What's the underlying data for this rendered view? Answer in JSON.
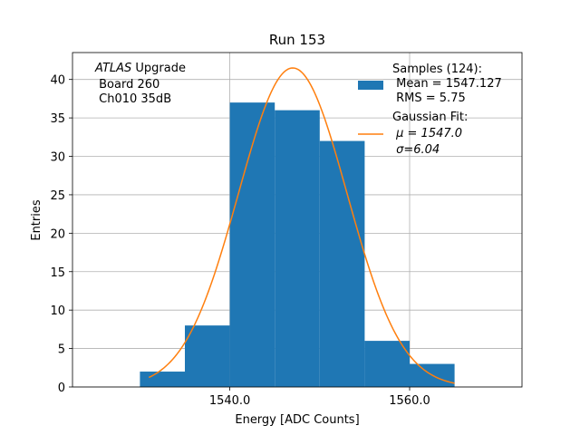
{
  "chart_data": {
    "type": "bar",
    "title": "Run 153",
    "xlabel": "Energy [ADC Counts]",
    "ylabel": "Entries",
    "xlim": [
      1522.5,
      1572.5
    ],
    "ylim": [
      0,
      43.5
    ],
    "grid": true,
    "x_ticks": [
      1540.0,
      1560.0
    ],
    "x_tick_labels": [
      "1540.0",
      "1560.0"
    ],
    "y_ticks": [
      0,
      5,
      10,
      15,
      20,
      25,
      30,
      35,
      40
    ],
    "y_tick_labels": [
      "0",
      "5",
      "10",
      "15",
      "20",
      "25",
      "30",
      "35",
      "40"
    ],
    "histogram": {
      "bin_edges": [
        1530,
        1535,
        1540,
        1545,
        1550,
        1555,
        1560,
        1565
      ],
      "counts": [
        2,
        8,
        37,
        36,
        32,
        6,
        3
      ],
      "color": "#1f77b4"
    },
    "fit": {
      "type": "gaussian",
      "amplitude": 41.5,
      "mu": 1547.0,
      "sigma": 6.04,
      "x_range": [
        1531,
        1565
      ],
      "color": "#ff7f0e"
    },
    "legend_position": "top-right",
    "legend": [
      {
        "marker": "patch",
        "lines": [
          "Samples (124):",
          " Mean = 1547.127",
          " RMS = 5.75"
        ]
      },
      {
        "marker": "line",
        "lines": [
          "Gaussian Fit:",
          " μ = 1547.0",
          " σ=6.04"
        ]
      }
    ],
    "annotation": {
      "italic": "ATLAS",
      "rest": " Upgrade",
      "lines": [
        " Board 260",
        " Ch010 35dB"
      ]
    }
  }
}
